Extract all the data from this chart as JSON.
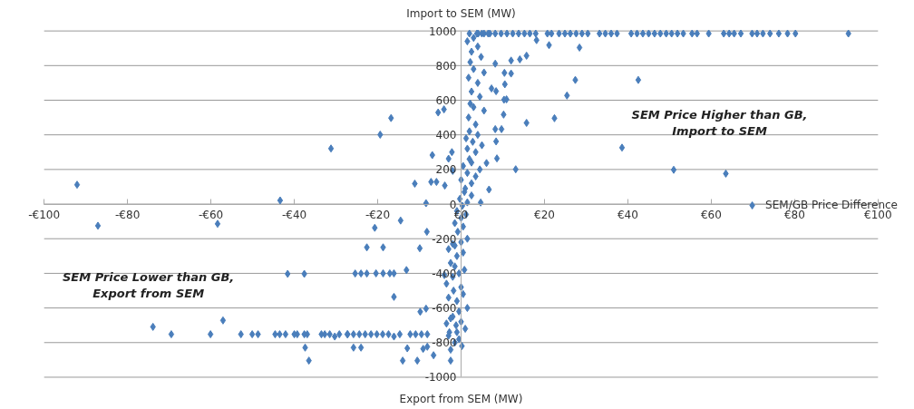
{
  "chart_data": {
    "type": "scatter",
    "ylabel": "Import to SEM (MW)",
    "annotations": [
      "Export from SEM (MW)",
      "SEM Price Higher than GB,\nImport to SEM",
      "SEM Price Lower than GB,\nExport from SEM"
    ],
    "xlim": [
      -100,
      100
    ],
    "ylim": [
      -1000,
      1000
    ],
    "xticks": [
      {
        "value": -100,
        "label": "-€100"
      },
      {
        "value": -80,
        "label": "-€80"
      },
      {
        "value": -60,
        "label": "-€60"
      },
      {
        "value": -40,
        "label": "-€40"
      },
      {
        "value": -20,
        "label": "-€20"
      },
      {
        "value": 0,
        "label": "€0"
      },
      {
        "value": 20,
        "label": "€20"
      },
      {
        "value": 40,
        "label": "€40"
      },
      {
        "value": 60,
        "label": "€60"
      },
      {
        "value": 80,
        "label": "€80"
      },
      {
        "value": 100,
        "label": "€100"
      }
    ],
    "yticks": [
      -1000,
      -800,
      -600,
      -400,
      -200,
      0,
      200,
      400,
      600,
      800,
      1000
    ],
    "grid": "y",
    "legend": "right",
    "marker": "diamond",
    "series": [
      {
        "name": "SEM/GB Price Difference",
        "color": "#4a7ebb",
        "x": [
          -92.1,
          -43.4,
          -31.2,
          -19.4,
          -16.8,
          -5.5,
          -4.1,
          -11.1,
          -6.9,
          -3,
          -2.2,
          -7.2,
          -5.9,
          -3.9,
          -8.4,
          -2,
          92.9,
          80.2,
          78.3,
          76.2,
          74.1,
          72.4,
          71,
          69.8,
          67.1,
          65.5,
          64.3,
          63,
          59.4,
          56.6,
          55.4,
          53.3,
          51.9,
          50.5,
          49.2,
          47.8,
          46.4,
          45,
          43.6,
          42.2,
          40.8,
          37.4,
          36,
          34.6,
          33.2,
          30.4,
          29,
          27.6,
          26.2,
          24.9,
          23.5,
          21.7,
          20.7,
          17.9,
          16.5,
          15.2,
          13.8,
          12.4,
          11,
          9.6,
          8.2,
          6.9,
          5.5,
          4.1,
          18.1,
          21.1,
          28.4,
          15.7,
          14.1,
          12,
          27.4,
          42.5,
          25.4,
          22.4,
          15.7,
          38.6,
          13.1,
          51,
          63.5,
          10.4,
          12,
          8.2,
          10.3,
          10.9,
          10.2,
          8.2,
          9.7,
          8.4,
          8.6,
          6.1,
          6.7,
          4.7,
          10.5,
          7.3,
          8.4,
          -87.1,
          -58.4,
          -14.5,
          -20.7,
          -22.6,
          -18.7,
          -9.9,
          -8.2,
          -41.6,
          -37.6,
          -25.4,
          -24,
          -22.6,
          -20.4,
          -18.7,
          -17.1,
          -16.1,
          -13.1,
          -16.1,
          -9.8,
          -8.4,
          -73.9,
          -69.5,
          -60.1,
          -57.1,
          -52.8,
          -50.1,
          -48.7,
          -44.6,
          -43.5,
          -42.1,
          -40,
          -39.3,
          -37.6,
          -36.9,
          -33.5,
          -32.7,
          -31.5,
          -30.3,
          -29.2,
          -27.3,
          -25.8,
          -24.4,
          -23,
          -21.6,
          -20.2,
          -18.8,
          -17.4,
          -16.1,
          -14.7,
          -12.2,
          -10.9,
          -9.5,
          -8.1,
          -27.2,
          -25.8,
          -24,
          -37.4,
          -36.5,
          -14,
          -12.9,
          -9.1,
          -6.6,
          -2.5,
          -10.5,
          -8.1,
          -2.5,
          -1.5,
          -0.5,
          0.2,
          -3,
          -1,
          1,
          -2.8,
          -1.2,
          0,
          -2,
          -0.5,
          1.5,
          -3.5,
          -2.5,
          -1,
          0.5,
          -3,
          -1.8,
          0,
          -3.5,
          -2,
          -0.5,
          0.8,
          -4,
          -1.5,
          -2.5,
          -1,
          0.5,
          -3,
          -1.5,
          0,
          1.5,
          -2,
          -0.8,
          0.5,
          -1.5,
          0,
          1.2,
          -1,
          0.3,
          1.5,
          -0.3,
          2.5,
          0.8,
          1,
          2.5,
          0,
          3.5,
          1.5,
          4.5,
          0.5,
          2.5,
          2,
          3.5,
          1.5,
          5,
          2.8,
          1.2,
          4,
          2,
          3.5,
          1.8,
          5.5,
          3,
          2.2,
          4.5,
          2.5,
          4,
          1.8,
          5.5,
          3,
          2.2,
          4.8,
          2.5,
          4,
          1.5,
          3,
          5,
          6.5,
          2,
          3.8
        ],
        "values": [
          112,
          21,
          321,
          401,
          497,
          529,
          547,
          118,
          283,
          262,
          300,
          128,
          128,
          107,
          5,
          192,
          985,
          985,
          985,
          985,
          985,
          985,
          985,
          985,
          985,
          985,
          985,
          985,
          985,
          985,
          985,
          985,
          985,
          985,
          985,
          985,
          985,
          985,
          985,
          985,
          985,
          985,
          985,
          985,
          985,
          985,
          985,
          985,
          985,
          985,
          985,
          985,
          985,
          985,
          985,
          985,
          985,
          985,
          985,
          985,
          985,
          985,
          985,
          985,
          947,
          918,
          904,
          857,
          836,
          829,
          717,
          717,
          627,
          496,
          469,
          326,
          201,
          198,
          176,
          758,
          754,
          811,
          603,
          605,
          517,
          433,
          433,
          362,
          264,
          237,
          84,
          9,
          692,
          668,
          652,
          -125,
          -114,
          -95,
          -137,
          -250,
          -250,
          -255,
          -160,
          -403,
          -403,
          -401,
          -401,
          -401,
          -400,
          -400,
          -400,
          -400,
          -381,
          -536,
          -622,
          -604,
          -709,
          -752,
          -752,
          -672,
          -752,
          -752,
          -752,
          -752,
          -752,
          -752,
          -752,
          -752,
          -752,
          -752,
          -752,
          -752,
          -752,
          -765,
          -752,
          -752,
          -752,
          -752,
          -752,
          -752,
          -752,
          -752,
          -752,
          -765,
          -752,
          -752,
          -752,
          -752,
          -752,
          -752,
          -829,
          -829,
          -829,
          -904,
          -904,
          -833,
          -836,
          -873,
          -904,
          -904,
          -824,
          -841,
          -800,
          -780,
          -820,
          -760,
          -740,
          -720,
          -740,
          -700,
          -680,
          -650,
          -620,
          -600,
          -690,
          -660,
          -560,
          -520,
          -540,
          -500,
          -480,
          -460,
          -420,
          -400,
          -380,
          -410,
          -360,
          -340,
          -300,
          -280,
          -260,
          -240,
          -220,
          -200,
          -230,
          -160,
          -130,
          -110,
          -80,
          -60,
          -40,
          -10,
          10,
          30,
          50,
          70,
          90,
          120,
          140,
          160,
          180,
          200,
          220,
          240,
          260,
          300,
          320,
          340,
          360,
          380,
          400,
          420,
          460,
          500,
          540,
          560,
          580,
          620,
          650,
          700,
          730,
          760,
          780,
          820,
          850,
          880,
          910,
          940,
          960,
          985,
          985,
          985,
          985
        ]
      }
    ]
  }
}
